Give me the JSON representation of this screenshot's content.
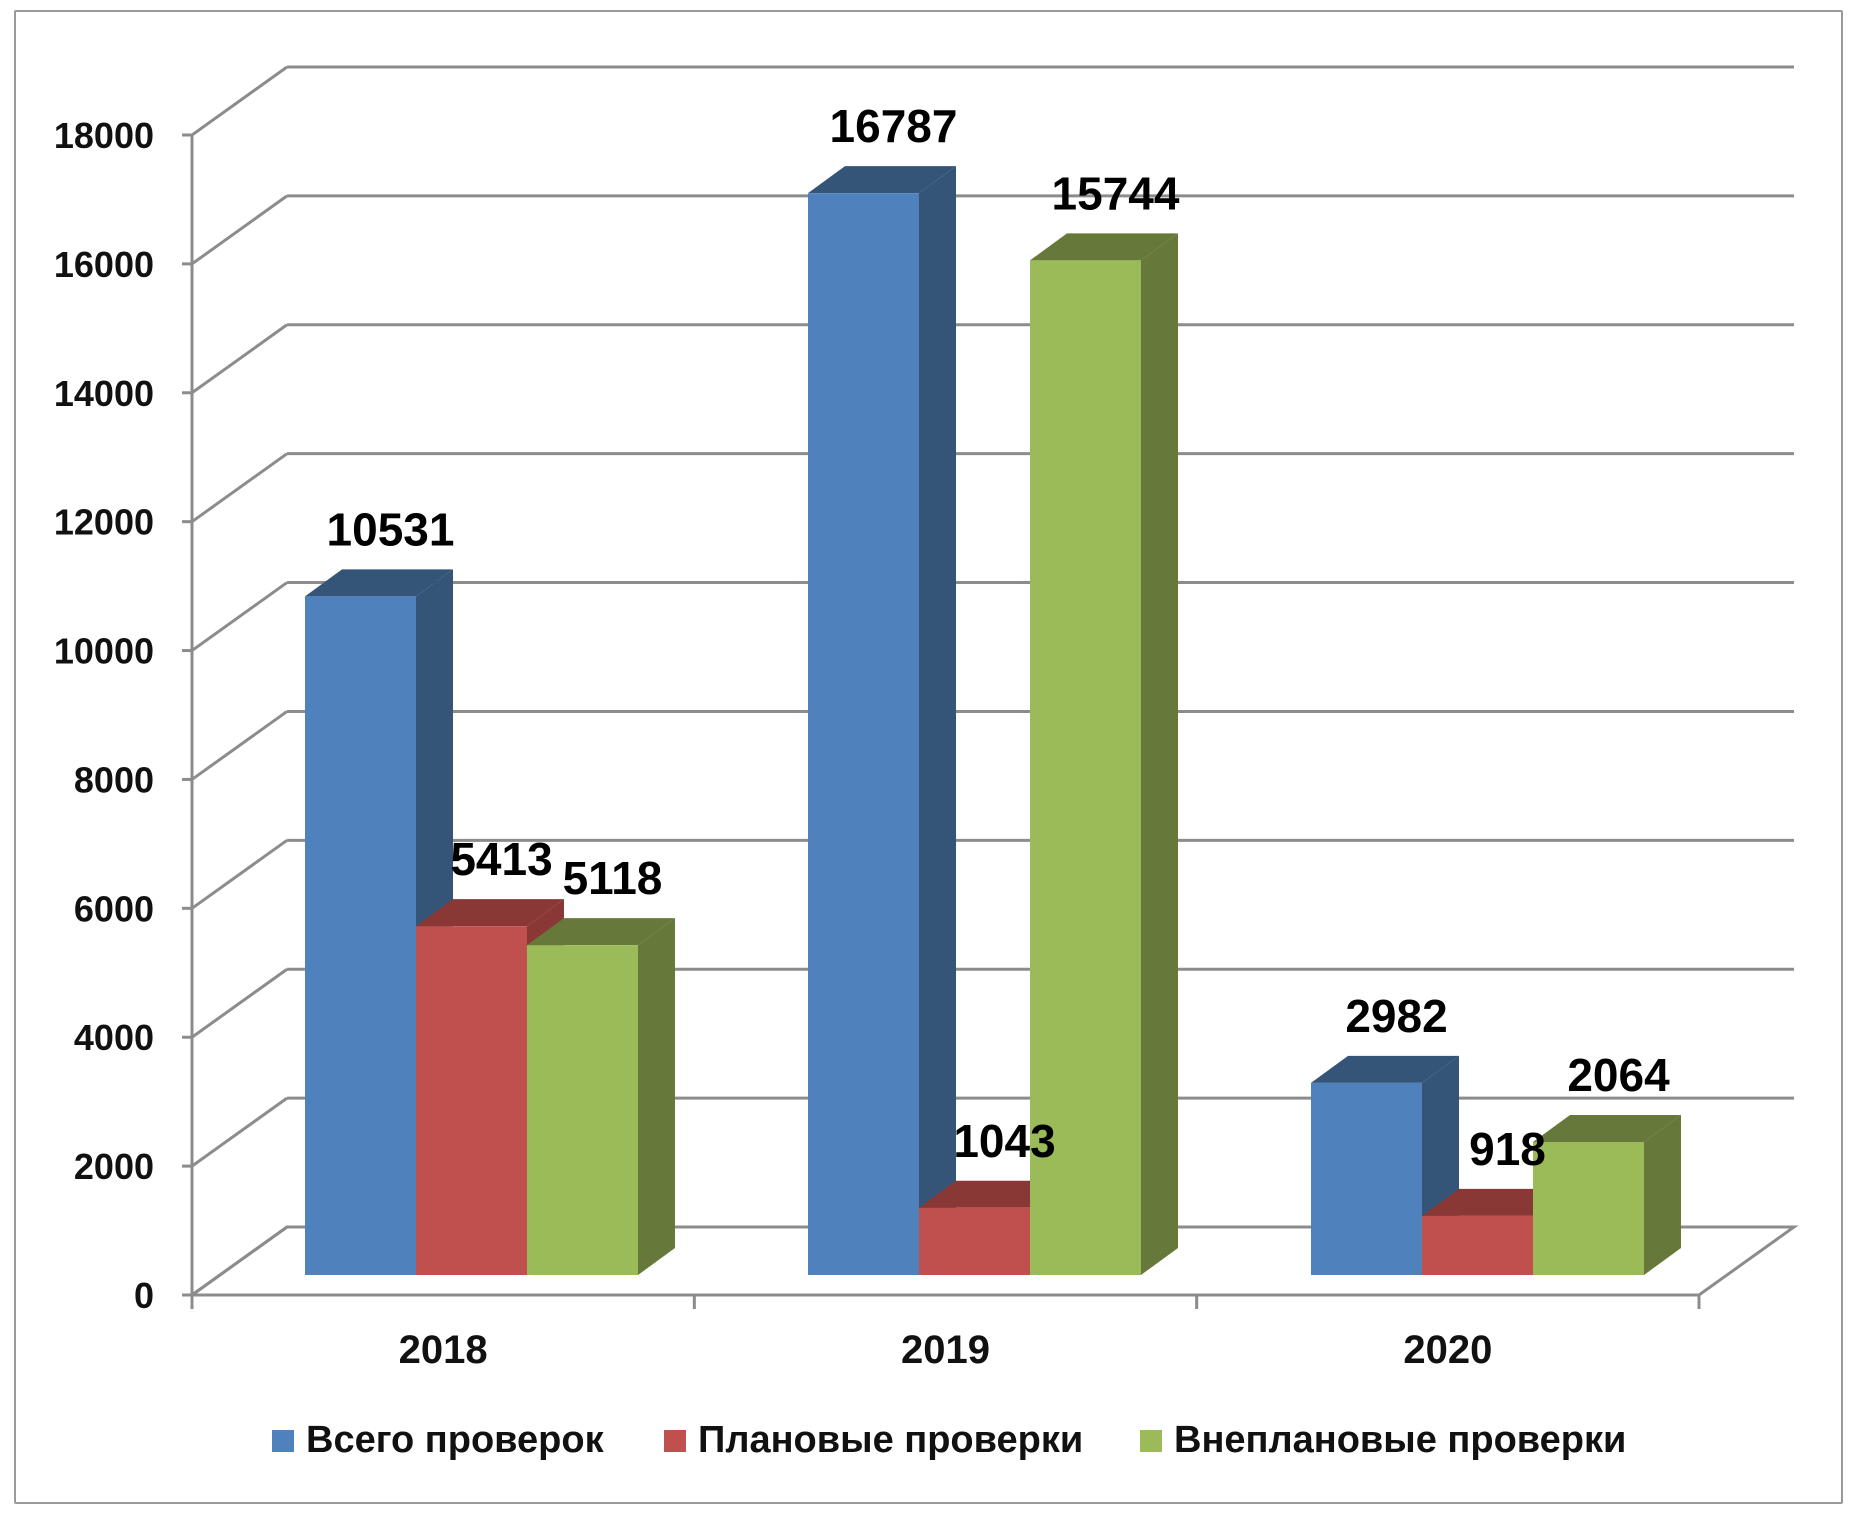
{
  "chart_data": {
    "type": "bar",
    "title": "",
    "xlabel": "",
    "ylabel": "",
    "categories": [
      "2018",
      "2019",
      "2020"
    ],
    "ylim": [
      0,
      18000
    ],
    "yticks": [
      0,
      2000,
      4000,
      6000,
      8000,
      10000,
      12000,
      14000,
      16000,
      18000
    ],
    "grid": true,
    "legend_position": "bottom",
    "style": "3d-clustered-column",
    "series": [
      {
        "name": "Всего проверок",
        "values": [
          10531,
          16787,
          2982
        ],
        "color": "#4F81BD",
        "side_color": "#345577"
      },
      {
        "name": "Плановые проверки",
        "values": [
          5413,
          1043,
          918
        ],
        "color": "#C0504D",
        "side_color": "#8A3836"
      },
      {
        "name": "Внеплановые проверки",
        "values": [
          5118,
          15744,
          2064
        ],
        "color": "#9BBB59",
        "side_color": "#66783A"
      }
    ],
    "data_labels": true
  }
}
